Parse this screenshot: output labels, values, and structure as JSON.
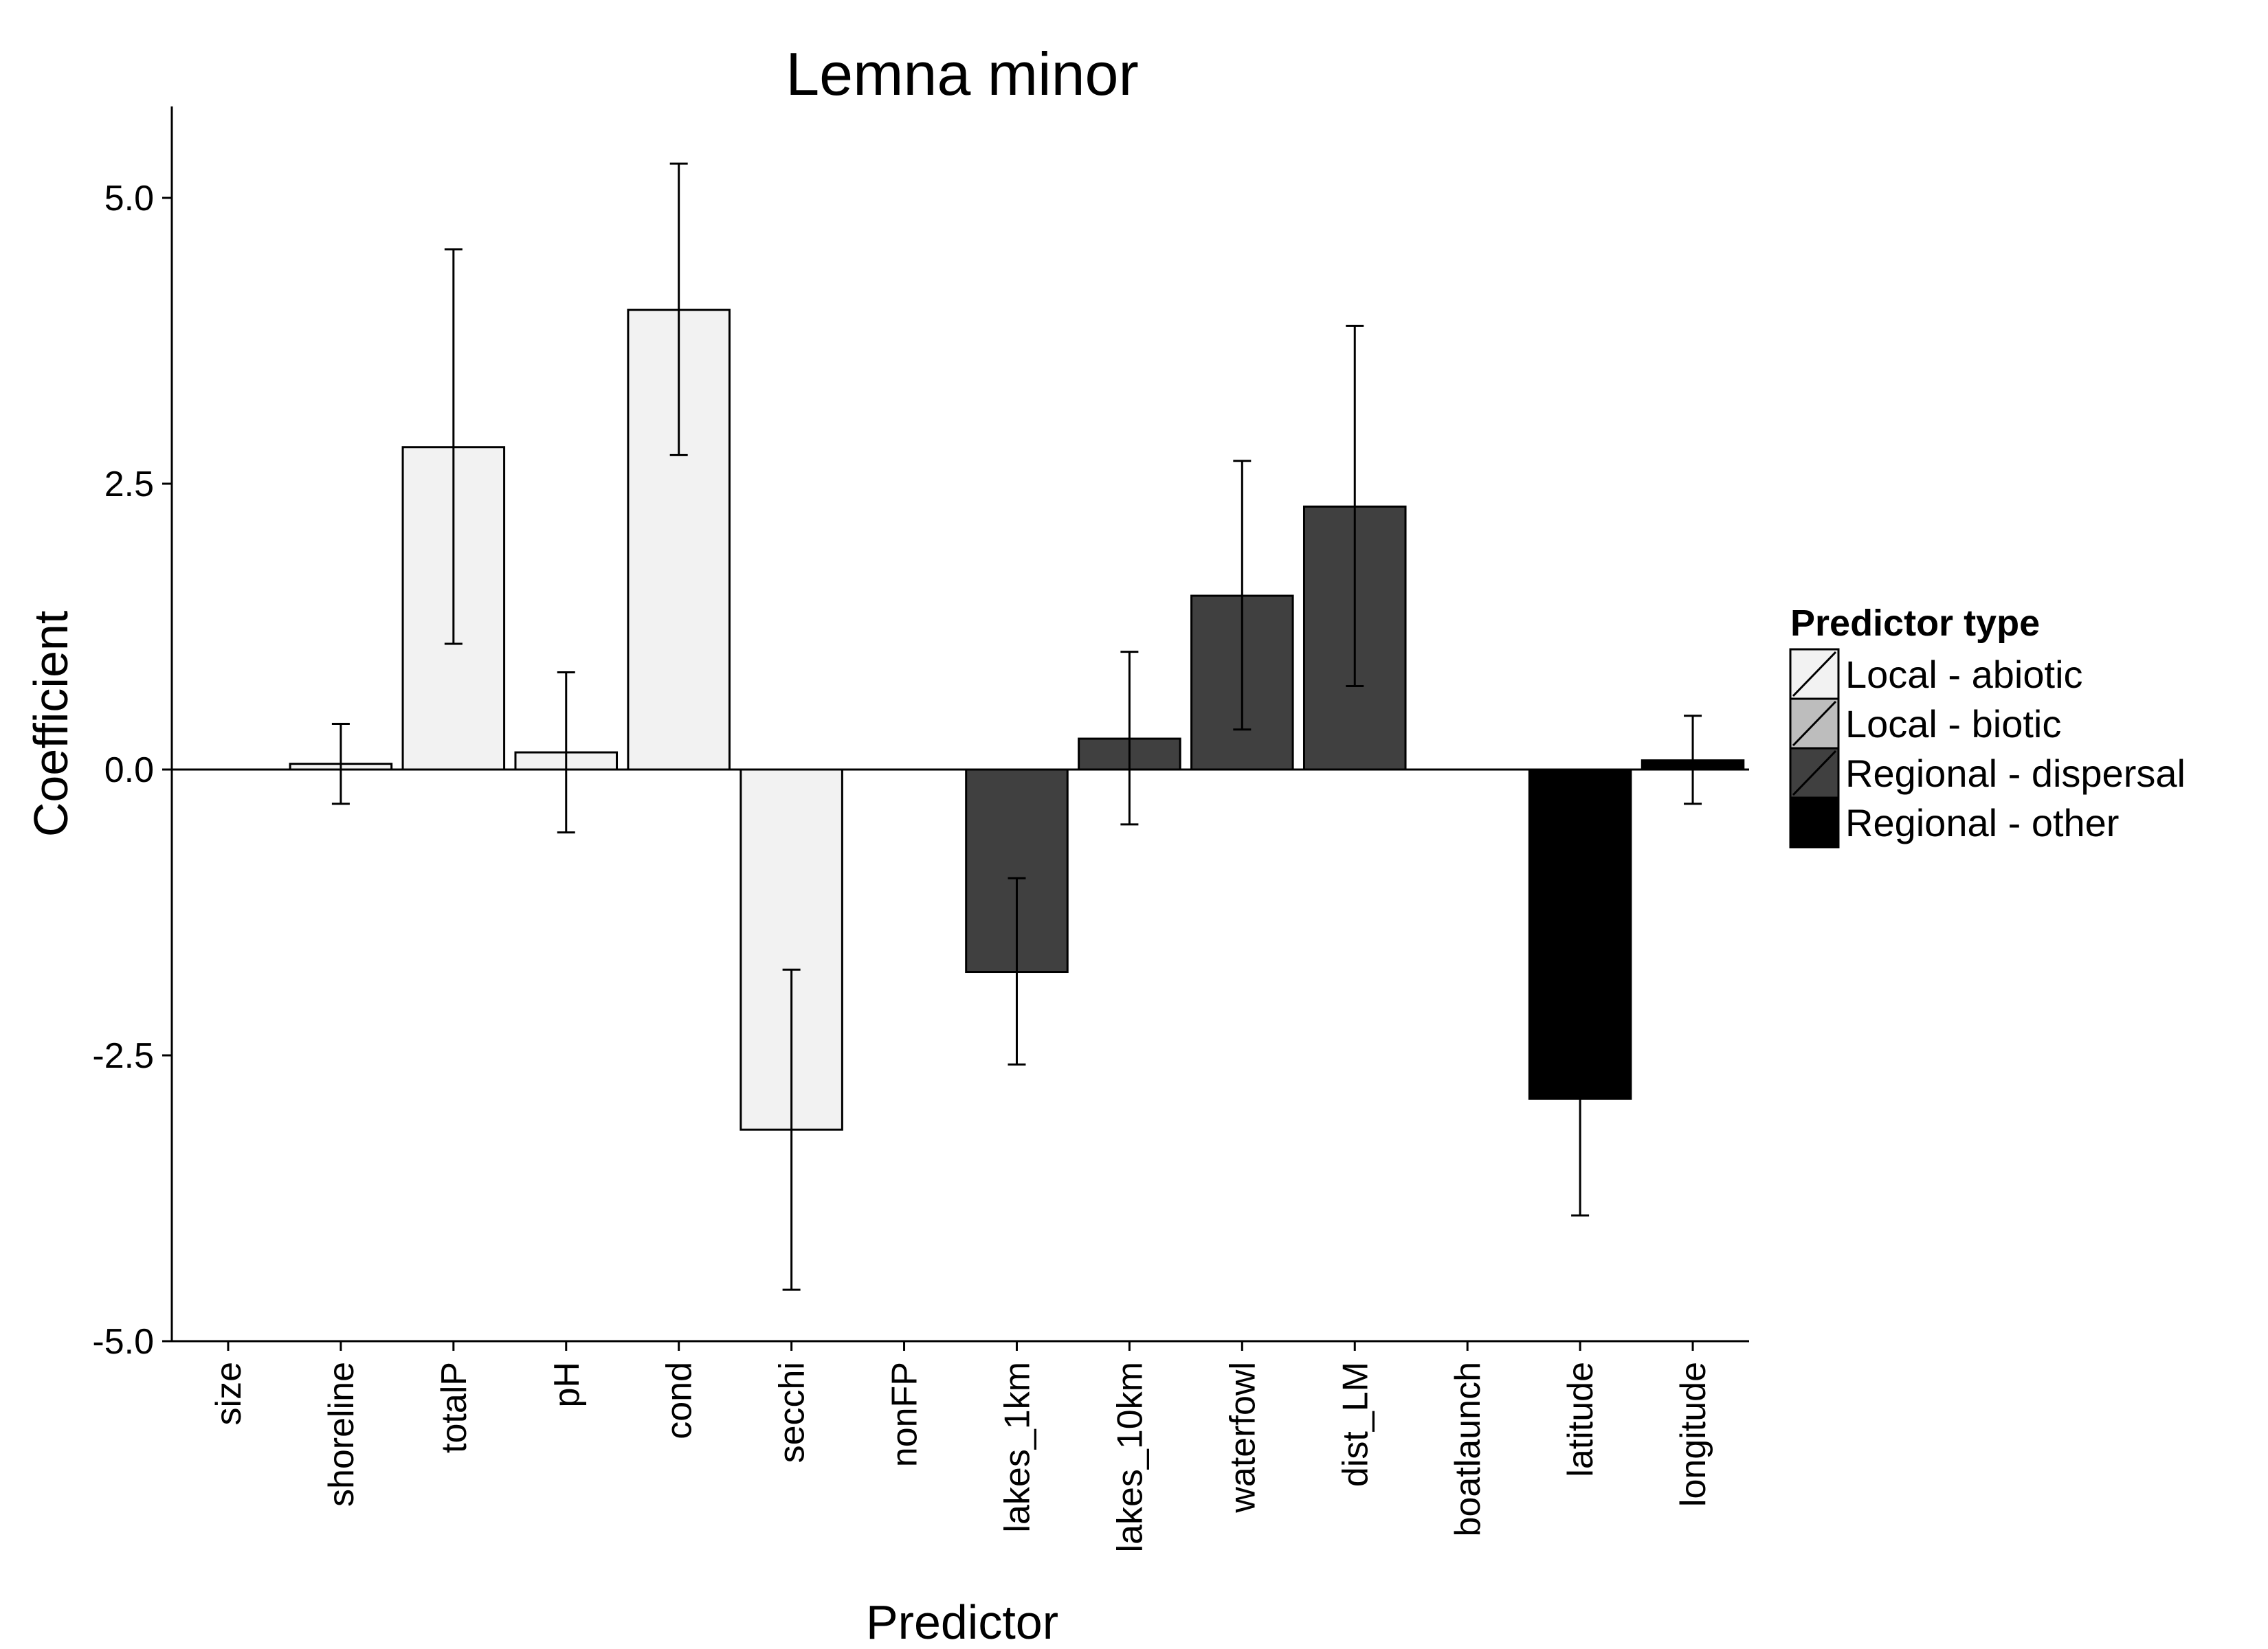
{
  "chart_data": {
    "type": "bar",
    "title": "Lemna minor",
    "xlabel": "Predictor",
    "ylabel": "Coefficient",
    "ylim": [
      -5.0,
      5.8
    ],
    "yticks": [
      -5.0,
      -2.5,
      0.0,
      2.5,
      5.0
    ],
    "ytick_labels": [
      "-5.0",
      "-2.5",
      "0.0",
      "2.5",
      "5.0"
    ],
    "grid": false,
    "legend": {
      "title": "Predictor type",
      "position": "right",
      "entries": [
        {
          "label": "Local - abiotic",
          "color": "#f2f2f2"
        },
        {
          "label": "Local - biotic",
          "color": "#bdbdbd"
        },
        {
          "label": "Regional - dispersal",
          "color": "#404040"
        },
        {
          "label": "Regional - other",
          "color": "#000000"
        }
      ]
    },
    "categories": [
      "size",
      "shoreline",
      "totalP",
      "pH",
      "cond",
      "secchi",
      "nonFP",
      "lakes_1km",
      "lakes_10km",
      "waterfowl",
      "dist_LM",
      "boatlaunch",
      "latitude",
      "longitude"
    ],
    "bars": [
      {
        "category": "size",
        "value": null,
        "error_low": null,
        "error_high": null,
        "type": "Local - abiotic"
      },
      {
        "category": "shoreline",
        "value": 0.05,
        "error_low": -0.3,
        "error_high": 0.4,
        "type": "Local - abiotic"
      },
      {
        "category": "totalP",
        "value": 2.82,
        "error_low": 1.1,
        "error_high": 4.55,
        "type": "Local - abiotic"
      },
      {
        "category": "pH",
        "value": 0.15,
        "error_low": -0.55,
        "error_high": 0.85,
        "type": "Local - abiotic"
      },
      {
        "category": "cond",
        "value": 4.02,
        "error_low": 2.75,
        "error_high": 5.3,
        "type": "Local - abiotic"
      },
      {
        "category": "secchi",
        "value": -3.15,
        "error_low": -4.55,
        "error_high": -1.75,
        "type": "Local - abiotic"
      },
      {
        "category": "nonFP",
        "value": null,
        "error_low": null,
        "error_high": null,
        "type": "Local - biotic"
      },
      {
        "category": "lakes_1km",
        "value": -1.77,
        "error_low": -2.58,
        "error_high": -0.95,
        "type": "Regional - dispersal"
      },
      {
        "category": "lakes_10km",
        "value": 0.27,
        "error_low": -0.48,
        "error_high": 1.03,
        "type": "Regional - dispersal"
      },
      {
        "category": "waterfowl",
        "value": 1.52,
        "error_low": 0.35,
        "error_high": 2.7,
        "type": "Regional - dispersal"
      },
      {
        "category": "dist_LM",
        "value": 2.3,
        "error_low": 0.73,
        "error_high": 3.88,
        "type": "Regional - dispersal"
      },
      {
        "category": "boatlaunch",
        "value": null,
        "error_low": null,
        "error_high": null,
        "type": "Regional - dispersal"
      },
      {
        "category": "latitude",
        "value": -2.88,
        "error_low": -3.9,
        "error_high": null,
        "type": "Regional - other"
      },
      {
        "category": "longitude",
        "value": 0.08,
        "error_low": -0.3,
        "error_high": 0.47,
        "type": "Regional - other"
      }
    ]
  }
}
